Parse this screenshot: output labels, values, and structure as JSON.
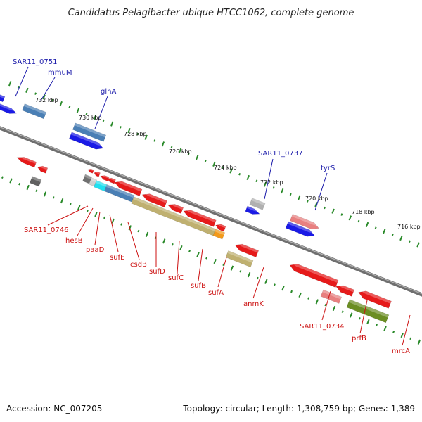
{
  "title": "Candidatus Pelagibacter ubique HTCC1062, complete genome",
  "footer": {
    "accession": "Accession: NC_007205",
    "info": "Topology: circular; Length: 1,308,759 bp; Genes: 1,389"
  },
  "colors": {
    "backbone": "#808080",
    "tick": "#2a8a2a",
    "label_blue": "#1a1aaa",
    "label_red": "#cc1111",
    "callout_blue": "#1a1aaa",
    "callout_red": "#cc1111"
  },
  "kbp_labels": [
    {
      "text": "732 kbp"
    },
    {
      "text": "730 kbp"
    },
    {
      "text": "728 kbp"
    },
    {
      "text": "726 kbp"
    },
    {
      "text": "724 kbp"
    },
    {
      "text": "722 kbp"
    },
    {
      "text": "720 kbp"
    },
    {
      "text": "718 kbp"
    },
    {
      "text": "716 kbp"
    }
  ],
  "genes": [
    {
      "name": "SAR11_0751",
      "color": "#1a1ae6",
      "strand": "plus"
    },
    {
      "name": "mmuM",
      "color": "#4a7fb5",
      "strand": "plus"
    },
    {
      "name": "glnA",
      "color": "#4a7fb5",
      "strand": "plus"
    },
    {
      "name": "",
      "color": "#1a1ae6",
      "strand": "plus"
    },
    {
      "name": "SAR11_0737",
      "color": "#b0b0b0",
      "strand": "plus"
    },
    {
      "name": "",
      "color": "#1a1ae6",
      "strand": "plus"
    },
    {
      "name": "tyrS",
      "color": "#e88080",
      "strand": "plus"
    },
    {
      "name": "",
      "color": "#1a1ae6",
      "strand": "plus"
    },
    {
      "name": "",
      "color": "#1a1ae6",
      "strand": "plus"
    },
    {
      "name": "",
      "color": "#e61a1a",
      "strand": "minus"
    },
    {
      "name": "",
      "color": "#e61a1a",
      "strand": "minus"
    },
    {
      "name": "",
      "color": "#606060",
      "strand": "minus"
    },
    {
      "name": "SAR11_0746",
      "color": "#707070",
      "strand": "minus"
    },
    {
      "name": "hesB",
      "color": "#d0d0d0",
      "strand": "minus"
    },
    {
      "name": "paaD",
      "color": "#e61a1a",
      "strand": "minus"
    },
    {
      "name": "sufE",
      "color": "#20e0f0",
      "strand": "minus"
    },
    {
      "name": "csdB",
      "color": "#4a7fb5",
      "strand": "minus"
    },
    {
      "name": "sufD",
      "color": "#e61a1a",
      "strand": "minus"
    },
    {
      "name": "sufC",
      "color": "#e61a1a",
      "strand": "minus"
    },
    {
      "name": "sufB",
      "color": "#bfb070",
      "strand": "minus"
    },
    {
      "name": "sufA",
      "color": "#f39a1a",
      "strand": "minus"
    },
    {
      "name": "",
      "color": "#e61a1a",
      "strand": "minus"
    },
    {
      "name": "",
      "color": "#e61a1a",
      "strand": "minus"
    },
    {
      "name": "",
      "color": "#e61a1a",
      "strand": "minus"
    },
    {
      "name": "",
      "color": "#e61a1a",
      "strand": "minus"
    },
    {
      "name": "",
      "color": "#e61a1a",
      "strand": "minus"
    },
    {
      "name": "",
      "color": "#e61a1a",
      "strand": "minus"
    },
    {
      "name": "",
      "color": "#e61a1a",
      "strand": "minus"
    },
    {
      "name": "anmK",
      "color": "#bfb070",
      "strand": "minus"
    },
    {
      "name": "",
      "color": "#e61a1a",
      "strand": "minus"
    },
    {
      "name": "SAR11_0734",
      "color": "#e61a1a",
      "strand": "minus"
    },
    {
      "name": "",
      "color": "#e61a1a",
      "strand": "minus"
    },
    {
      "name": "prfB",
      "color": "#e88080",
      "strand": "minus"
    },
    {
      "name": "mrcA",
      "color": "#6b8e23",
      "strand": "minus"
    },
    {
      "name": "",
      "color": "#e61a1a",
      "strand": "minus"
    }
  ]
}
